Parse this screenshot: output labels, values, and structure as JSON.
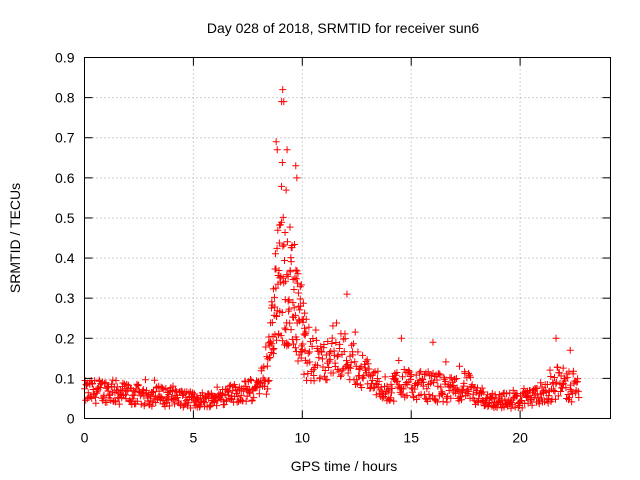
{
  "chart_data": {
    "type": "scatter",
    "title": "Day 028 of 2018, SRMTID for receiver sun6",
    "xlabel": "GPS time / hours",
    "ylabel": "SRMTID / TECUs",
    "xlim": [
      0,
      24.15
    ],
    "ylim": [
      0,
      0.9
    ],
    "x_ticks": [
      0,
      5,
      10,
      15,
      20
    ],
    "y_ticks": [
      0,
      0.1,
      0.2,
      0.3,
      0.4,
      0.5,
      0.6,
      0.7,
      0.8,
      0.9
    ],
    "grid": true,
    "marker": "+",
    "series": [
      {
        "name": "SRMTID",
        "color": "#ff0000",
        "profile": [
          {
            "x": 0.0,
            "mean": 0.065,
            "spread": 0.03,
            "peak": 0.11
          },
          {
            "x": 1.0,
            "mean": 0.07,
            "spread": 0.03,
            "peak": 0.12
          },
          {
            "x": 2.0,
            "mean": 0.06,
            "spread": 0.03,
            "peak": 0.1
          },
          {
            "x": 3.0,
            "mean": 0.055,
            "spread": 0.025,
            "peak": 0.1
          },
          {
            "x": 4.0,
            "mean": 0.055,
            "spread": 0.025,
            "peak": 0.1
          },
          {
            "x": 5.0,
            "mean": 0.045,
            "spread": 0.02,
            "peak": 0.08
          },
          {
            "x": 6.0,
            "mean": 0.05,
            "spread": 0.02,
            "peak": 0.08
          },
          {
            "x": 7.0,
            "mean": 0.065,
            "spread": 0.025,
            "peak": 0.1
          },
          {
            "x": 8.0,
            "mean": 0.07,
            "spread": 0.03,
            "peak": 0.11
          },
          {
            "x": 8.4,
            "mean": 0.12,
            "spread": 0.06,
            "peak": 0.2
          },
          {
            "x": 8.6,
            "mean": 0.22,
            "spread": 0.08,
            "peak": 0.32
          },
          {
            "x": 8.8,
            "mean": 0.32,
            "spread": 0.15,
            "peak": 0.69
          },
          {
            "x": 9.1,
            "mean": 0.35,
            "spread": 0.18,
            "peak": 0.82
          },
          {
            "x": 9.4,
            "mean": 0.3,
            "spread": 0.12,
            "peak": 0.5
          },
          {
            "x": 9.7,
            "mean": 0.3,
            "spread": 0.15,
            "peak": 0.63
          },
          {
            "x": 10.0,
            "mean": 0.2,
            "spread": 0.1,
            "peak": 0.35
          },
          {
            "x": 10.5,
            "mean": 0.14,
            "spread": 0.06,
            "peak": 0.23
          },
          {
            "x": 11.0,
            "mean": 0.14,
            "spread": 0.05,
            "peak": 0.22
          },
          {
            "x": 11.5,
            "mean": 0.16,
            "spread": 0.05,
            "peak": 0.24
          },
          {
            "x": 12.0,
            "mean": 0.16,
            "spread": 0.06,
            "peak": 0.31
          },
          {
            "x": 12.5,
            "mean": 0.13,
            "spread": 0.05,
            "peak": 0.2
          },
          {
            "x": 13.0,
            "mean": 0.11,
            "spread": 0.04,
            "peak": 0.18
          },
          {
            "x": 13.5,
            "mean": 0.08,
            "spread": 0.03,
            "peak": 0.12
          },
          {
            "x": 14.0,
            "mean": 0.07,
            "spread": 0.03,
            "peak": 0.12
          },
          {
            "x": 14.6,
            "mean": 0.1,
            "spread": 0.05,
            "peak": 0.2
          },
          {
            "x": 15.0,
            "mean": 0.08,
            "spread": 0.03,
            "peak": 0.12
          },
          {
            "x": 16.0,
            "mean": 0.08,
            "spread": 0.04,
            "peak": 0.19
          },
          {
            "x": 17.0,
            "mean": 0.07,
            "spread": 0.03,
            "peak": 0.11
          },
          {
            "x": 17.5,
            "mean": 0.09,
            "spread": 0.04,
            "peak": 0.16
          },
          {
            "x": 18.0,
            "mean": 0.05,
            "spread": 0.02,
            "peak": 0.08
          },
          {
            "x": 19.0,
            "mean": 0.045,
            "spread": 0.02,
            "peak": 0.08
          },
          {
            "x": 20.0,
            "mean": 0.045,
            "spread": 0.02,
            "peak": 0.08
          },
          {
            "x": 21.0,
            "mean": 0.055,
            "spread": 0.025,
            "peak": 0.1
          },
          {
            "x": 21.7,
            "mean": 0.09,
            "spread": 0.04,
            "peak": 0.2
          },
          {
            "x": 22.4,
            "mean": 0.08,
            "spread": 0.04,
            "peak": 0.17
          },
          {
            "x": 22.7,
            "mean": 0.07,
            "spread": 0.03,
            "peak": 0.11
          }
        ]
      }
    ]
  }
}
